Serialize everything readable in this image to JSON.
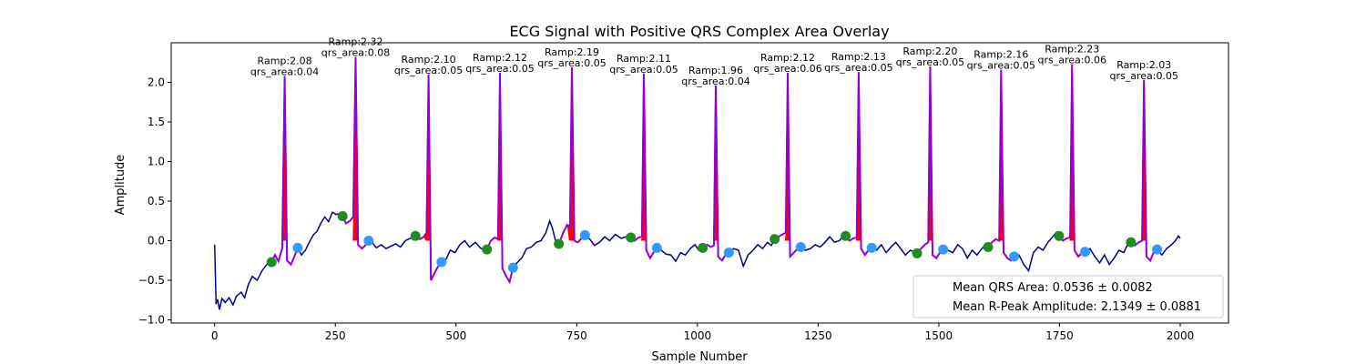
{
  "chart_data": {
    "type": "line",
    "title": "ECG Signal with Positive QRS Complex Area Overlay",
    "xlabel": "Sample Number",
    "ylabel": "Amplitude",
    "xlim": [
      -90,
      2100
    ],
    "ylim": [
      -1.04,
      2.5
    ],
    "x_ticks": [
      0,
      250,
      500,
      750,
      1000,
      1250,
      1500,
      1750,
      2000
    ],
    "y_ticks": [
      -1.0,
      -0.5,
      0.0,
      0.5,
      1.0,
      1.5,
      2.0
    ],
    "x_tick_labels": [
      "0",
      "250",
      "500",
      "750",
      "1000",
      "1250",
      "1500",
      "1750",
      "2000"
    ],
    "y_tick_labels": [
      "−1.0",
      "−0.5",
      "0.0",
      "0.5",
      "1.0",
      "1.5",
      "2.0"
    ],
    "grid": false,
    "colors": {
      "signal": "#00008b",
      "qrs_segment": "#9400d3",
      "qrs_area_fill": "#ff0000",
      "onset_marker": "#228b22",
      "offset_marker": "#3399ff"
    },
    "beats": [
      {
        "r_peak": 145,
        "r_amp": 2.08,
        "qrs_area": 0.04,
        "label_amp": "Ramp:2.08",
        "label_area": "qrs_area:0.04",
        "onset": [
          118,
          -0.27
        ],
        "offset": [
          172,
          -0.09
        ]
      },
      {
        "r_peak": 292,
        "r_amp": 2.32,
        "qrs_area": 0.08,
        "label_amp": "Ramp:2.32",
        "label_area": "qrs_area:0.08",
        "onset": [
          265,
          0.31
        ],
        "offset": [
          319,
          0.0
        ]
      },
      {
        "r_peak": 443,
        "r_amp": 2.1,
        "qrs_area": 0.05,
        "label_amp": "Ramp:2.10",
        "label_area": "qrs_area:0.05",
        "onset": [
          416,
          0.06
        ],
        "offset": [
          470,
          -0.27
        ]
      },
      {
        "r_peak": 591,
        "r_amp": 2.12,
        "qrs_area": 0.05,
        "label_amp": "Ramp:2.12",
        "label_area": "qrs_area:0.05",
        "onset": [
          564,
          -0.11
        ],
        "offset": [
          618,
          -0.34
        ]
      },
      {
        "r_peak": 740,
        "r_amp": 2.19,
        "qrs_area": 0.05,
        "label_amp": "Ramp:2.19",
        "label_area": "qrs_area:0.05",
        "onset": [
          713,
          -0.04
        ],
        "offset": [
          767,
          0.07
        ]
      },
      {
        "r_peak": 889,
        "r_amp": 2.11,
        "qrs_area": 0.05,
        "label_amp": "Ramp:2.11",
        "label_area": "qrs_area:0.05",
        "onset": [
          862,
          0.04
        ],
        "offset": [
          916,
          -0.09
        ]
      },
      {
        "r_peak": 1038,
        "r_amp": 1.96,
        "qrs_area": 0.04,
        "label_amp": "Ramp:1.96",
        "label_area": "qrs_area:0.04",
        "onset": [
          1011,
          -0.09
        ],
        "offset": [
          1065,
          -0.15
        ]
      },
      {
        "r_peak": 1187,
        "r_amp": 2.12,
        "qrs_area": 0.06,
        "label_amp": "Ramp:2.12",
        "label_area": "qrs_area:0.06",
        "onset": [
          1160,
          0.02
        ],
        "offset": [
          1214,
          -0.08
        ]
      },
      {
        "r_peak": 1334,
        "r_amp": 2.13,
        "qrs_area": 0.05,
        "label_amp": "Ramp:2.13",
        "label_area": "qrs_area:0.05",
        "onset": [
          1307,
          0.06
        ],
        "offset": [
          1361,
          -0.09
        ]
      },
      {
        "r_peak": 1482,
        "r_amp": 2.2,
        "qrs_area": 0.05,
        "label_amp": "Ramp:2.20",
        "label_area": "qrs_area:0.05",
        "onset": [
          1455,
          -0.16
        ],
        "offset": [
          1509,
          -0.11
        ]
      },
      {
        "r_peak": 1629,
        "r_amp": 2.16,
        "qrs_area": 0.05,
        "label_amp": "Ramp:2.16",
        "label_area": "qrs_area:0.05",
        "onset": [
          1602,
          -0.08
        ],
        "offset": [
          1656,
          -0.2
        ]
      },
      {
        "r_peak": 1776,
        "r_amp": 2.23,
        "qrs_area": 0.06,
        "label_amp": "Ramp:2.23",
        "label_area": "qrs_area:0.06",
        "onset": [
          1749,
          0.06
        ],
        "offset": [
          1803,
          -0.14
        ]
      },
      {
        "r_peak": 1925,
        "r_amp": 2.03,
        "qrs_area": 0.05,
        "label_amp": "Ramp:2.03",
        "label_area": "qrs_area:0.05",
        "onset": [
          1898,
          -0.02
        ],
        "offset": [
          1952,
          -0.11
        ]
      }
    ],
    "baseline_points": [
      [
        0,
        -0.05
      ],
      [
        3,
        -0.8
      ],
      [
        6,
        -0.74
      ],
      [
        10,
        -0.87
      ],
      [
        15,
        -0.73
      ],
      [
        22,
        -0.78
      ],
      [
        30,
        -0.72
      ],
      [
        38,
        -0.81
      ],
      [
        45,
        -0.7
      ],
      [
        55,
        -0.65
      ],
      [
        62,
        -0.72
      ],
      [
        70,
        -0.55
      ],
      [
        78,
        -0.45
      ],
      [
        88,
        -0.5
      ],
      [
        98,
        -0.38
      ],
      [
        108,
        -0.3
      ],
      [
        118,
        -0.27
      ],
      [
        125,
        -0.18
      ],
      [
        132,
        -0.26
      ],
      [
        140,
        -0.1
      ],
      [
        145,
        2.08
      ],
      [
        150,
        -0.25
      ],
      [
        158,
        -0.3
      ],
      [
        165,
        -0.2
      ],
      [
        172,
        -0.09
      ],
      [
        180,
        -0.18
      ],
      [
        188,
        -0.12
      ],
      [
        196,
        -0.02
      ],
      [
        204,
        0.07
      ],
      [
        212,
        0.12
      ],
      [
        220,
        0.22
      ],
      [
        228,
        0.3
      ],
      [
        236,
        0.24
      ],
      [
        244,
        0.36
      ],
      [
        252,
        0.33
      ],
      [
        260,
        0.35
      ],
      [
        265,
        0.31
      ],
      [
        272,
        0.22
      ],
      [
        280,
        0.25
      ],
      [
        287,
        0.3
      ],
      [
        292,
        2.32
      ],
      [
        297,
        -0.05
      ],
      [
        305,
        -0.1
      ],
      [
        312,
        -0.06
      ],
      [
        319,
        0.0
      ],
      [
        327,
        -0.03
      ],
      [
        335,
        -0.09
      ],
      [
        345,
        -0.05
      ],
      [
        355,
        -0.1
      ],
      [
        365,
        -0.07
      ],
      [
        375,
        -0.04
      ],
      [
        385,
        -0.08
      ],
      [
        395,
        0.0
      ],
      [
        405,
        0.03
      ],
      [
        416,
        0.06
      ],
      [
        425,
        0.02
      ],
      [
        433,
        0.05
      ],
      [
        439,
        0.1
      ],
      [
        443,
        2.1
      ],
      [
        448,
        -0.5
      ],
      [
        456,
        -0.4
      ],
      [
        463,
        -0.32
      ],
      [
        470,
        -0.27
      ],
      [
        478,
        -0.25
      ],
      [
        488,
        -0.12
      ],
      [
        498,
        -0.15
      ],
      [
        508,
        -0.05
      ],
      [
        518,
        0.0
      ],
      [
        528,
        -0.08
      ],
      [
        540,
        -0.02
      ],
      [
        552,
        -0.1
      ],
      [
        564,
        -0.11
      ],
      [
        572,
        0.0
      ],
      [
        580,
        0.04
      ],
      [
        587,
        0.02
      ],
      [
        591,
        2.12
      ],
      [
        596,
        -0.35
      ],
      [
        604,
        -0.45
      ],
      [
        611,
        -0.52
      ],
      [
        618,
        -0.34
      ],
      [
        626,
        -0.28
      ],
      [
        636,
        -0.22
      ],
      [
        646,
        -0.1
      ],
      [
        656,
        -0.08
      ],
      [
        666,
        -0.02
      ],
      [
        676,
        0.0
      ],
      [
        686,
        0.1
      ],
      [
        694,
        0.25
      ],
      [
        700,
        0.15
      ],
      [
        706,
        0.0
      ],
      [
        713,
        -0.04
      ],
      [
        722,
        0.1
      ],
      [
        730,
        0.2
      ],
      [
        736,
        0.18
      ],
      [
        740,
        2.19
      ],
      [
        745,
        0.0
      ],
      [
        752,
        -0.02
      ],
      [
        760,
        0.03
      ],
      [
        767,
        0.07
      ],
      [
        777,
        0.02
      ],
      [
        787,
        -0.06
      ],
      [
        797,
        -0.02
      ],
      [
        808,
        0.05
      ],
      [
        818,
        0.0
      ],
      [
        830,
        0.08
      ],
      [
        842,
        0.03
      ],
      [
        852,
        0.05
      ],
      [
        862,
        0.04
      ],
      [
        870,
        0.0
      ],
      [
        878,
        0.04
      ],
      [
        885,
        0.05
      ],
      [
        889,
        2.11
      ],
      [
        894,
        -0.12
      ],
      [
        902,
        -0.22
      ],
      [
        909,
        -0.15
      ],
      [
        916,
        -0.09
      ],
      [
        925,
        -0.12
      ],
      [
        935,
        -0.17
      ],
      [
        945,
        -0.18
      ],
      [
        955,
        -0.26
      ],
      [
        965,
        -0.15
      ],
      [
        975,
        -0.18
      ],
      [
        985,
        -0.1
      ],
      [
        995,
        -0.05
      ],
      [
        1003,
        -0.12
      ],
      [
        1011,
        -0.09
      ],
      [
        1020,
        -0.05
      ],
      [
        1028,
        -0.08
      ],
      [
        1034,
        -0.06
      ],
      [
        1038,
        1.96
      ],
      [
        1043,
        -0.2
      ],
      [
        1051,
        -0.25
      ],
      [
        1058,
        -0.18
      ],
      [
        1065,
        -0.15
      ],
      [
        1075,
        -0.1
      ],
      [
        1085,
        -0.12
      ],
      [
        1095,
        -0.32
      ],
      [
        1105,
        -0.18
      ],
      [
        1115,
        -0.12
      ],
      [
        1125,
        -0.05
      ],
      [
        1135,
        -0.1
      ],
      [
        1145,
        -0.02
      ],
      [
        1153,
        -0.06
      ],
      [
        1160,
        0.02
      ],
      [
        1168,
        0.05
      ],
      [
        1176,
        0.08
      ],
      [
        1183,
        0.1
      ],
      [
        1187,
        2.12
      ],
      [
        1192,
        -0.2
      ],
      [
        1200,
        -0.15
      ],
      [
        1207,
        -0.1
      ],
      [
        1214,
        -0.08
      ],
      [
        1224,
        -0.12
      ],
      [
        1234,
        -0.1
      ],
      [
        1244,
        -0.05
      ],
      [
        1254,
        -0.08
      ],
      [
        1264,
        -0.02
      ],
      [
        1274,
        0.05
      ],
      [
        1284,
        -0.02
      ],
      [
        1294,
        0.0
      ],
      [
        1300,
        0.04
      ],
      [
        1307,
        0.06
      ],
      [
        1315,
        0.0
      ],
      [
        1323,
        0.03
      ],
      [
        1330,
        0.04
      ],
      [
        1334,
        2.13
      ],
      [
        1339,
        -0.1
      ],
      [
        1347,
        -0.18
      ],
      [
        1354,
        -0.12
      ],
      [
        1361,
        -0.09
      ],
      [
        1371,
        -0.12
      ],
      [
        1381,
        -0.05
      ],
      [
        1391,
        -0.15
      ],
      [
        1401,
        -0.08
      ],
      [
        1411,
        -0.02
      ],
      [
        1421,
        -0.1
      ],
      [
        1431,
        -0.18
      ],
      [
        1441,
        -0.12
      ],
      [
        1448,
        -0.14
      ],
      [
        1455,
        -0.16
      ],
      [
        1463,
        -0.1
      ],
      [
        1471,
        -0.05
      ],
      [
        1478,
        -0.02
      ],
      [
        1482,
        2.2
      ],
      [
        1487,
        -0.18
      ],
      [
        1495,
        -0.22
      ],
      [
        1502,
        -0.15
      ],
      [
        1509,
        -0.11
      ],
      [
        1519,
        -0.12
      ],
      [
        1529,
        -0.15
      ],
      [
        1539,
        -0.05
      ],
      [
        1549,
        -0.1
      ],
      [
        1559,
        -0.22
      ],
      [
        1569,
        -0.12
      ],
      [
        1579,
        -0.18
      ],
      [
        1589,
        -0.1
      ],
      [
        1596,
        -0.06
      ],
      [
        1602,
        -0.08
      ],
      [
        1610,
        -0.02
      ],
      [
        1618,
        0.02
      ],
      [
        1625,
        0.0
      ],
      [
        1629,
        2.16
      ],
      [
        1634,
        -0.15
      ],
      [
        1642,
        -0.22
      ],
      [
        1649,
        -0.25
      ],
      [
        1656,
        -0.2
      ],
      [
        1666,
        -0.18
      ],
      [
        1676,
        -0.3
      ],
      [
        1686,
        -0.38
      ],
      [
        1696,
        -0.15
      ],
      [
        1706,
        -0.08
      ],
      [
        1716,
        -0.12
      ],
      [
        1726,
        -0.02
      ],
      [
        1736,
        0.05
      ],
      [
        1743,
        0.1
      ],
      [
        1749,
        0.06
      ],
      [
        1757,
        0.0
      ],
      [
        1765,
        0.03
      ],
      [
        1772,
        0.04
      ],
      [
        1776,
        2.23
      ],
      [
        1781,
        -0.12
      ],
      [
        1789,
        -0.2
      ],
      [
        1796,
        -0.16
      ],
      [
        1803,
        -0.14
      ],
      [
        1813,
        -0.1
      ],
      [
        1823,
        -0.2
      ],
      [
        1833,
        -0.28
      ],
      [
        1843,
        -0.18
      ],
      [
        1853,
        -0.3
      ],
      [
        1863,
        -0.22
      ],
      [
        1873,
        -0.12
      ],
      [
        1883,
        -0.15
      ],
      [
        1891,
        -0.05
      ],
      [
        1898,
        -0.02
      ],
      [
        1906,
        -0.06
      ],
      [
        1914,
        -0.02
      ],
      [
        1921,
        0.0
      ],
      [
        1925,
        2.03
      ],
      [
        1930,
        -0.2
      ],
      [
        1938,
        -0.25
      ],
      [
        1945,
        -0.15
      ],
      [
        1952,
        -0.11
      ],
      [
        1962,
        -0.18
      ],
      [
        1972,
        -0.1
      ],
      [
        1982,
        -0.05
      ],
      [
        1990,
        0.0
      ],
      [
        1996,
        0.06
      ],
      [
        2000,
        0.03
      ]
    ],
    "legend": {
      "placement": "lower-right",
      "entries": [
        "Mean QRS Area: 0.0536 ± 0.0082",
        "Mean R-Peak Amplitude: 2.1349 ± 0.0881"
      ]
    }
  }
}
